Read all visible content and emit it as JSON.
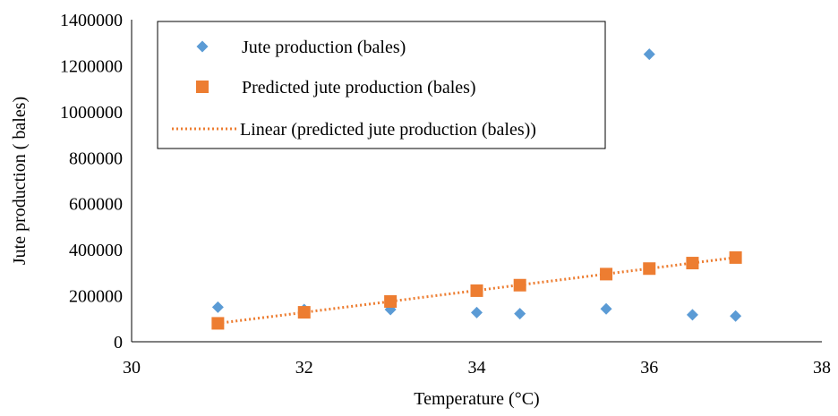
{
  "chart_data": {
    "type": "scatter",
    "title": "",
    "xlabel": "Temperature (°C)",
    "ylabel": "Jute production ( bales)",
    "xlim": [
      30,
      38
    ],
    "ylim": [
      0,
      1400000
    ],
    "x_ticks": [
      "30",
      "32",
      "34",
      "36",
      "38"
    ],
    "y_ticks": [
      "0",
      "200000",
      "400000",
      "600000",
      "800000",
      "1000000",
      "1200000",
      "1400000"
    ],
    "grid": false,
    "legend_position": "top-left (inside plot)",
    "series": [
      {
        "name": "Jute production (bales)",
        "marker": "diamond",
        "color": "#5B9BD5",
        "points": [
          {
            "x": 31,
            "y": 150000
          },
          {
            "x": 32,
            "y": 140000
          },
          {
            "x": 33,
            "y": 140000
          },
          {
            "x": 34,
            "y": 127000
          },
          {
            "x": 34.5,
            "y": 122000
          },
          {
            "x": 35.5,
            "y": 143000
          },
          {
            "x": 36,
            "y": 1250000
          },
          {
            "x": 36.5,
            "y": 117000
          },
          {
            "x": 37,
            "y": 112000
          }
        ]
      },
      {
        "name": "Predicted jute production (bales)",
        "marker": "square",
        "color": "#ED7D31",
        "points": [
          {
            "x": 31,
            "y": 80000
          },
          {
            "x": 32,
            "y": 128000
          },
          {
            "x": 33,
            "y": 175000
          },
          {
            "x": 34,
            "y": 222000
          },
          {
            "x": 34.5,
            "y": 246000
          },
          {
            "x": 35.5,
            "y": 294000
          },
          {
            "x": 36,
            "y": 318000
          },
          {
            "x": 36.5,
            "y": 342000
          },
          {
            "x": 37,
            "y": 366000
          }
        ]
      }
    ],
    "trendline": {
      "name": "Linear (predicted jute production (bales))",
      "type": "linear",
      "style": "dotted",
      "color": "#ED7D31",
      "from": {
        "x": 31,
        "y": 80000
      },
      "to": {
        "x": 37,
        "y": 366000
      }
    }
  }
}
